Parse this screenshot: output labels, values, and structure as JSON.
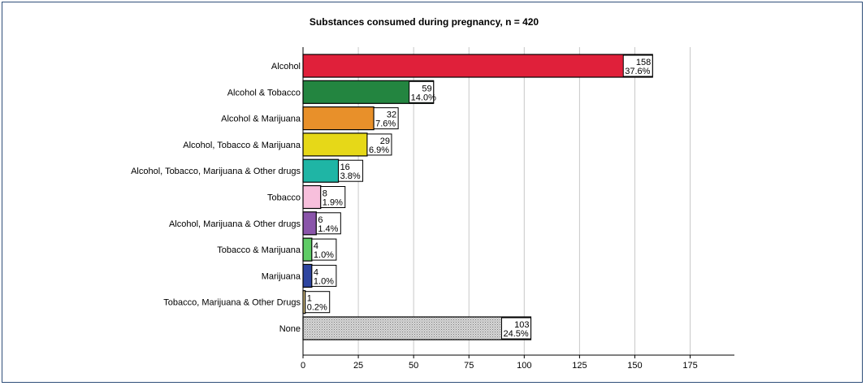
{
  "chart_data": {
    "type": "bar",
    "orientation": "horizontal",
    "title": "Substances consumed during pregnancy, n = 420",
    "xlabel": "",
    "ylabel": "",
    "xlim": [
      0,
      195
    ],
    "xticks": [
      0,
      25,
      50,
      75,
      100,
      125,
      150,
      175
    ],
    "grid": true,
    "categories": [
      "Alcohol",
      "Alcohol & Tobacco",
      "Alcohol & Marijuana",
      "Alcohol, Tobacco & Marijuana",
      "Alcohol, Tobacco, Marijuana & Other drugs",
      "Tobacco",
      "Alcohol, Marijuana & Other drugs",
      "Tobacco & Marijuana",
      "Marijuana",
      "Tobacco, Marijuana & Other Drugs",
      "None"
    ],
    "values": [
      158,
      59,
      32,
      29,
      16,
      8,
      6,
      4,
      4,
      1,
      103
    ],
    "percent_labels": [
      "37.6%",
      "14.0%",
      "7.6%",
      "6.9%",
      "3.8%",
      "1.9%",
      "1.4%",
      "1.0%",
      "1.0%",
      "0.2%",
      "24.5%"
    ],
    "colors": [
      "#e0203a",
      "#238540",
      "#e8902a",
      "#e6d818",
      "#1fb5a5",
      "#f7bfdc",
      "#8a55aa",
      "#5fcc66",
      "#2e45a0",
      "#e4cc88",
      "pattern"
    ]
  }
}
